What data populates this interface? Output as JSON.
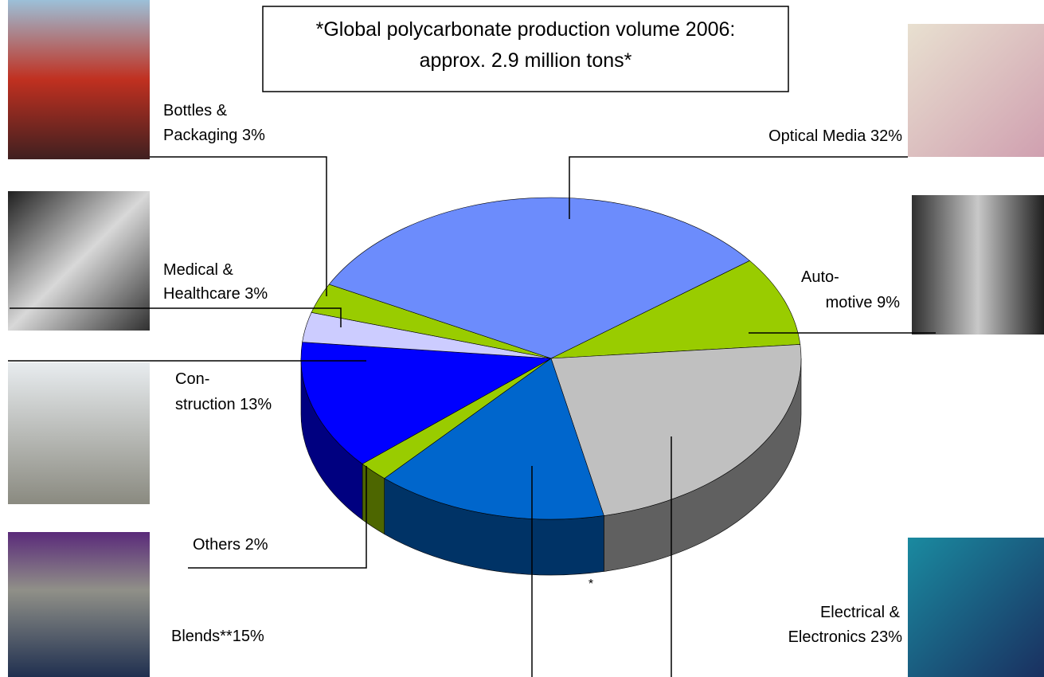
{
  "chart_data": {
    "type": "pie3d",
    "title": [
      "*Global polycarbonate production volume 2006:",
      "approx. 2.9 million tons*"
    ],
    "categories": [
      [
        "Optical Media 32%"
      ],
      [
        "Auto-",
        "motive 9%"
      ],
      [
        "Electrical &",
        "Electronics 23%"
      ],
      [
        "Blends**15%"
      ],
      [
        "Others 2%"
      ],
      [
        "Con-",
        "struction 13%"
      ],
      [
        "Medical &",
        "Healthcare 3%"
      ],
      [
        "Bottles &",
        "Packaging 3%"
      ]
    ],
    "values": [
      32,
      9,
      23,
      15,
      2,
      13,
      3,
      3
    ],
    "colors": [
      "#6c8cfc",
      "#99cc00",
      "#c0c0c0",
      "#0066cc",
      "#99cc00",
      "#0000ff",
      "#ccccff",
      "#99cc00"
    ],
    "annotation": "*"
  }
}
